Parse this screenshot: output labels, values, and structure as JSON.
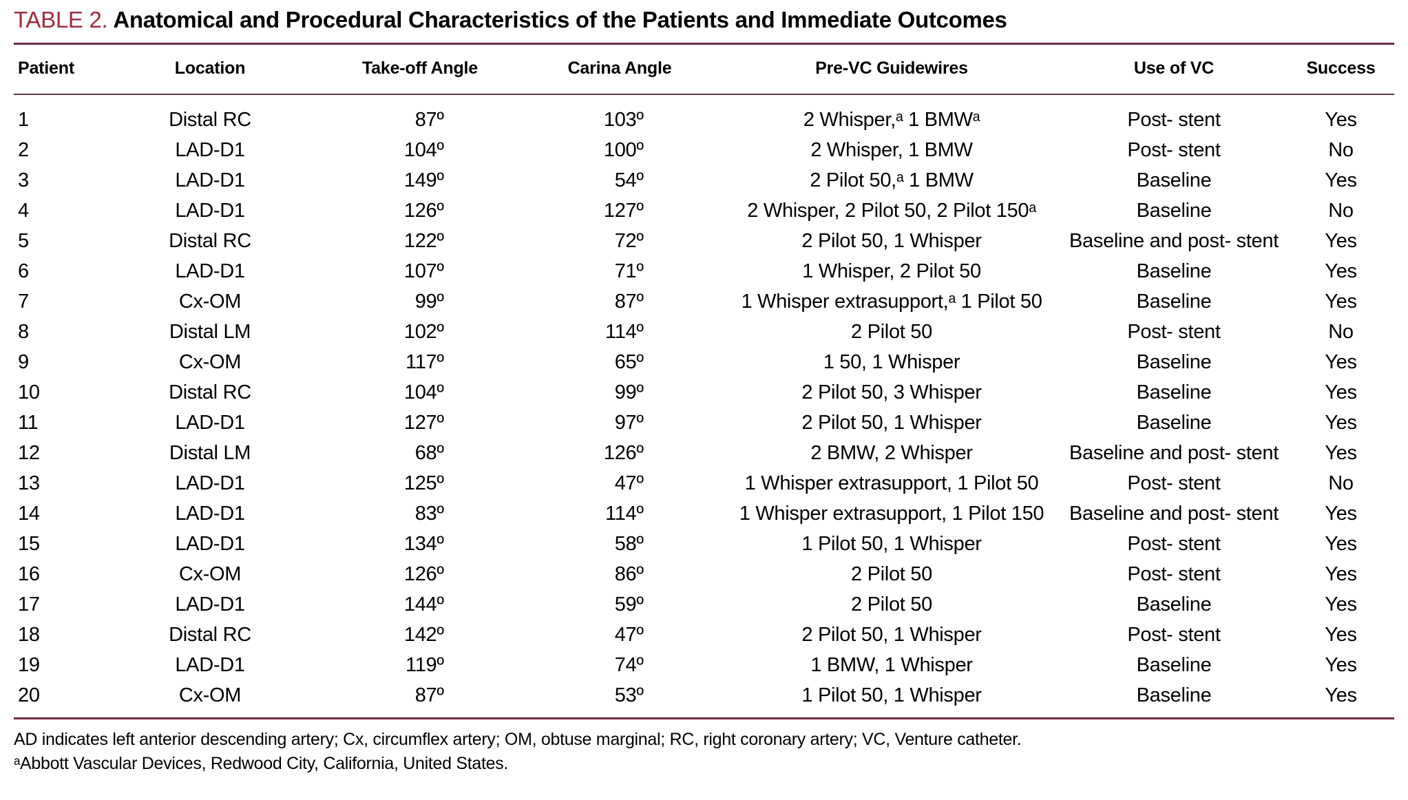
{
  "title": {
    "label": "TABLE 2.",
    "text": "Anatomical and Procedural Characteristics of the Patients and Immediate Outcomes"
  },
  "colors": {
    "accent": "#A02C3C",
    "rule": "#6B2F3F",
    "text": "#000000",
    "background": "#FFFFFF"
  },
  "table": {
    "columns": [
      "Patient",
      "Location",
      "Take-off Angle",
      "Carina Angle",
      "Pre-VC Guidewires",
      "Use of VC",
      "Success"
    ],
    "rows": [
      [
        "1",
        "Distal RC",
        "87º",
        "103º",
        "2 Whisper,ᵃ 1 BMWᵃ",
        "Post- stent",
        "Yes"
      ],
      [
        "2",
        "LAD-D1",
        "104º",
        "100º",
        "2 Whisper, 1 BMW",
        "Post- stent",
        "No"
      ],
      [
        "3",
        "LAD-D1",
        "149º",
        "54º",
        "2 Pilot 50,ᵃ 1 BMW",
        "Baseline",
        "Yes"
      ],
      [
        "4",
        "LAD-D1",
        "126º",
        "127º",
        "2 Whisper, 2 Pilot 50, 2 Pilot 150ᵃ",
        "Baseline",
        "No"
      ],
      [
        "5",
        "Distal RC",
        "122º",
        "72º",
        "2 Pilot 50, 1 Whisper",
        "Baseline and post- stent",
        "Yes"
      ],
      [
        "6",
        "LAD-D1",
        "107º",
        "71º",
        "1 Whisper, 2 Pilot 50",
        "Baseline",
        "Yes"
      ],
      [
        "7",
        "Cx-OM",
        "99º",
        "87º",
        "1 Whisper extrasupport,ᵃ 1 Pilot 50",
        "Baseline",
        "Yes"
      ],
      [
        "8",
        "Distal LM",
        "102º",
        "114º",
        "2 Pilot 50",
        "Post- stent",
        "No"
      ],
      [
        "9",
        "Cx-OM",
        "117º",
        "65º",
        "1 50, 1 Whisper",
        "Baseline",
        "Yes"
      ],
      [
        "10",
        "Distal RC",
        "104º",
        "99º",
        "2 Pilot 50, 3 Whisper",
        "Baseline",
        "Yes"
      ],
      [
        "11",
        "LAD-D1",
        "127º",
        "97º",
        "2 Pilot 50, 1 Whisper",
        "Baseline",
        "Yes"
      ],
      [
        "12",
        "Distal LM",
        "68º",
        "126º",
        "2 BMW, 2 Whisper",
        "Baseline and post- stent",
        "Yes"
      ],
      [
        "13",
        "LAD-D1",
        "125º",
        "47º",
        "1 Whisper extrasupport, 1 Pilot 50",
        "Post- stent",
        "No"
      ],
      [
        "14",
        "LAD-D1",
        "83º",
        "114º",
        "1 Whisper extrasupport, 1 Pilot 150",
        "Baseline and post- stent",
        "Yes"
      ],
      [
        "15",
        "LAD-D1",
        "134º",
        "58º",
        "1 Pilot 50, 1 Whisper",
        "Post- stent",
        "Yes"
      ],
      [
        "16",
        "Cx-OM",
        "126º",
        "86º",
        "2 Pilot 50",
        "Post- stent",
        "Yes"
      ],
      [
        "17",
        "LAD-D1",
        "144º",
        "59º",
        "2 Pilot 50",
        "Baseline",
        "Yes"
      ],
      [
        "18",
        "Distal RC",
        "142º",
        "47º",
        "2 Pilot 50, 1 Whisper",
        "Post- stent",
        "Yes"
      ],
      [
        "19",
        "LAD-D1",
        "119º",
        "74º",
        "1 BMW, 1 Whisper",
        "Baseline",
        "Yes"
      ],
      [
        "20",
        "Cx-OM",
        "87º",
        "53º",
        "1 Pilot 50, 1 Whisper",
        "Baseline",
        "Yes"
      ]
    ]
  },
  "footnotes": [
    "AD indicates left anterior descending artery; Cx, circumflex artery; OM, obtuse marginal; RC, right coronary artery; VC, Venture catheter.",
    "ᵃAbbott Vascular Devices, Redwood City, California, United States."
  ]
}
